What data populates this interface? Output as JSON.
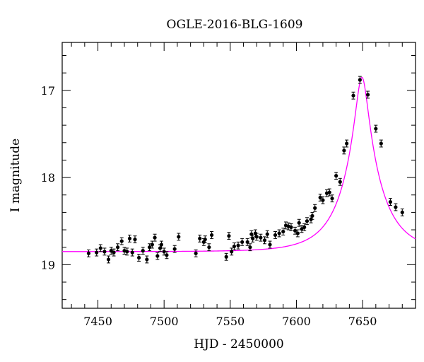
{
  "chart_data": {
    "type": "scatter",
    "title": "OGLE-2016-BLG-1609",
    "xlabel": "HJD - 2450000",
    "ylabel": "I magnitude",
    "xlim": [
      7423,
      7690
    ],
    "ylim": [
      19.5,
      16.45
    ],
    "y_inverted": true,
    "grid": false,
    "x_ticks": [
      7450,
      7500,
      7550,
      7600,
      7650
    ],
    "y_ticks": [
      17,
      18,
      19
    ],
    "x_tick_labels": [
      "7450",
      "7500",
      "7550",
      "7600",
      "7650"
    ],
    "y_tick_labels": [
      "17",
      "18",
      "19"
    ],
    "x_minor_step": 10,
    "y_minor_step": 0.2,
    "model_color": "#ff00ff",
    "point_color": "#000000",
    "model": {
      "name": "",
      "type": "microlensing fit",
      "t0": 7649.5,
      "u0": 0.16,
      "tE": 28,
      "m_base": 18.85
    },
    "series": [
      {
        "name": "",
        "x": [
          7443,
          7449,
          7452,
          7455,
          7458,
          7460,
          7462,
          7465,
          7468,
          7470,
          7472,
          7474,
          7476,
          7478,
          7481,
          7484,
          7487,
          7489,
          7491,
          7493,
          7495,
          7497,
          7498,
          7500,
          7502,
          7508,
          7511,
          7524,
          7527,
          7530,
          7531,
          7534,
          7536,
          7547,
          7549,
          7551,
          7553,
          7556,
          7559,
          7563,
          7565,
          7566,
          7567,
          7569,
          7570,
          7573,
          7576,
          7578,
          7580,
          7584,
          7587,
          7590,
          7592,
          7594,
          7596,
          7599,
          7601,
          7602,
          7604,
          7606,
          7608,
          7611,
          7612,
          7614,
          7618,
          7620,
          7623,
          7625,
          7627,
          7630,
          7633,
          7636,
          7638,
          7643,
          7648,
          7654,
          7660,
          7664,
          7671,
          7675,
          7680
        ],
        "y": [
          18.87,
          18.86,
          18.81,
          18.85,
          18.94,
          18.84,
          18.86,
          18.8,
          18.73,
          18.84,
          18.85,
          18.7,
          18.86,
          18.71,
          18.92,
          18.84,
          18.94,
          18.8,
          18.77,
          18.69,
          18.9,
          18.81,
          18.77,
          18.85,
          18.89,
          18.82,
          18.68,
          18.87,
          18.7,
          18.74,
          18.71,
          18.8,
          18.66,
          18.91,
          18.67,
          18.85,
          18.79,
          18.78,
          18.74,
          18.74,
          18.8,
          18.65,
          18.7,
          18.64,
          18.68,
          18.69,
          18.72,
          18.65,
          18.77,
          18.66,
          18.64,
          18.62,
          18.55,
          18.56,
          18.57,
          18.61,
          18.64,
          18.52,
          18.59,
          18.57,
          18.5,
          18.48,
          18.44,
          18.35,
          18.23,
          18.26,
          18.18,
          18.17,
          18.24,
          17.98,
          18.05,
          17.69,
          17.61,
          17.06,
          16.88,
          17.05,
          17.44,
          17.61,
          18.28,
          18.34,
          18.4
        ]
      }
    ]
  }
}
